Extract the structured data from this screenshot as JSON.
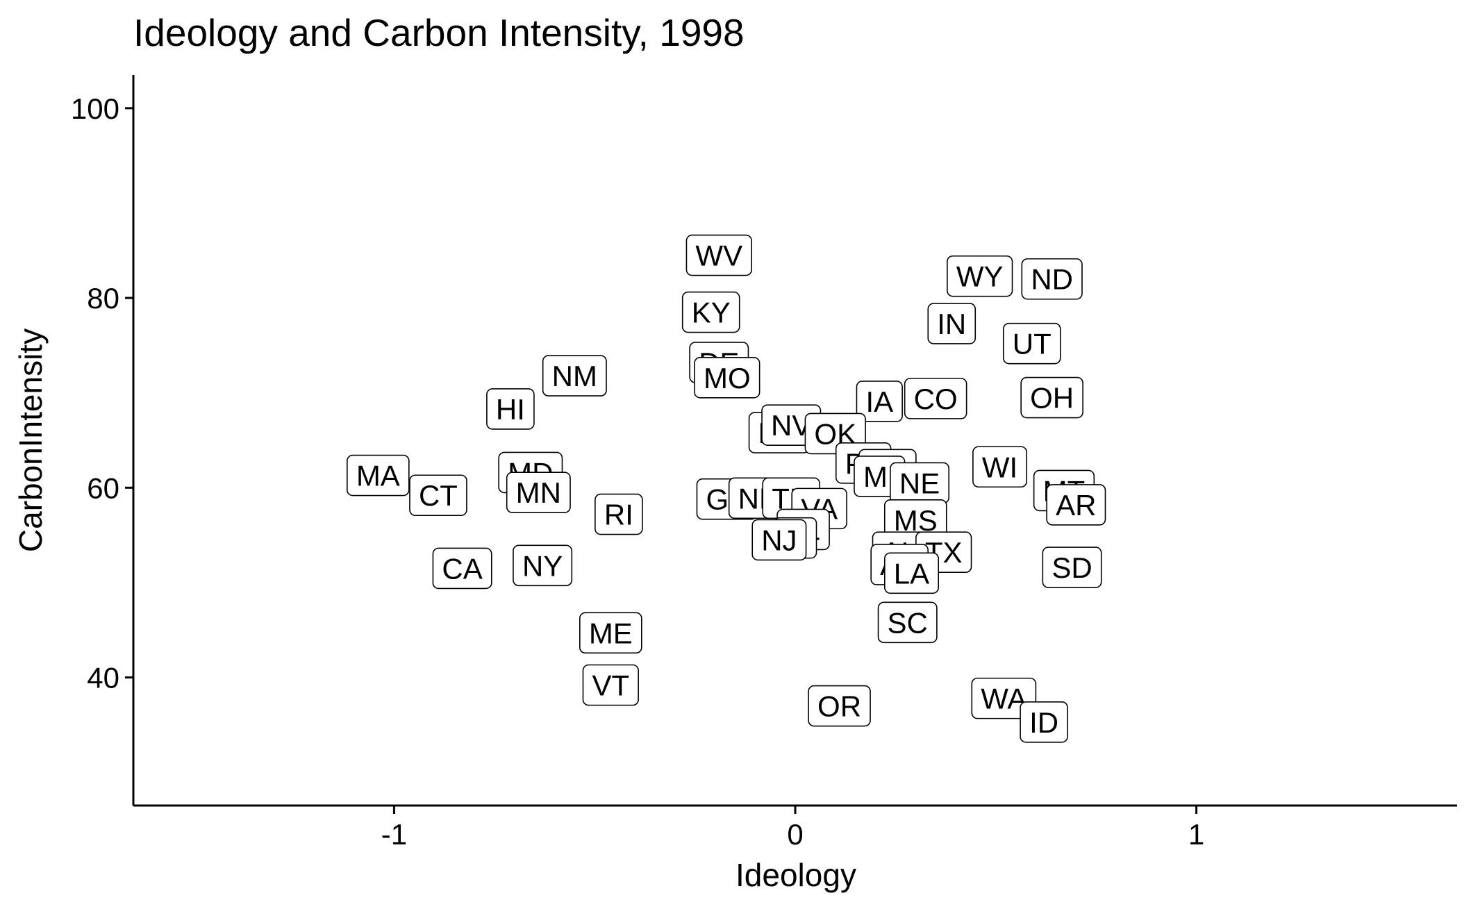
{
  "chart_data": {
    "type": "scatter",
    "title": "Ideology and Carbon Intensity, 1998",
    "xlabel": "Ideology",
    "ylabel": "CarbonIntensity",
    "xlim": [
      -1.65,
      1.65
    ],
    "ylim": [
      26.5,
      103.5
    ],
    "xticks": [
      -1,
      0,
      1
    ],
    "xtick_labels": [
      "-1",
      "0",
      "1"
    ],
    "yticks": [
      40,
      60,
      80,
      100
    ],
    "ytick_labels": [
      "40",
      "60",
      "80",
      "100"
    ],
    "grid": false,
    "legend": "none",
    "point_style": "label",
    "points": [
      {
        "label": "WV",
        "x": -0.19,
        "y": 84.5
      },
      {
        "label": "WY",
        "x": 0.46,
        "y": 82.3
      },
      {
        "label": "ND",
        "x": 0.64,
        "y": 82.0
      },
      {
        "label": "KY",
        "x": -0.21,
        "y": 78.5
      },
      {
        "label": "IN",
        "x": 0.39,
        "y": 77.3
      },
      {
        "label": "UT",
        "x": 0.59,
        "y": 75.2
      },
      {
        "label": "DE",
        "x": -0.19,
        "y": 73.2
      },
      {
        "label": "NM",
        "x": -0.55,
        "y": 71.8
      },
      {
        "label": "MO",
        "x": -0.17,
        "y": 71.6
      },
      {
        "label": "HI",
        "x": -0.71,
        "y": 68.3
      },
      {
        "label": "IA",
        "x": 0.21,
        "y": 69.1
      },
      {
        "label": "CO",
        "x": 0.35,
        "y": 69.4
      },
      {
        "label": "OH",
        "x": 0.64,
        "y": 69.5
      },
      {
        "label": "NC",
        "x": -0.04,
        "y": 65.8
      },
      {
        "label": "NV",
        "x": -0.01,
        "y": 66.6
      },
      {
        "label": "OK",
        "x": 0.1,
        "y": 65.7
      },
      {
        "label": "PA",
        "x": 0.17,
        "y": 62.6
      },
      {
        "label": "KS",
        "x": 0.23,
        "y": 61.9
      },
      {
        "label": "MI",
        "x": 0.21,
        "y": 61.2
      },
      {
        "label": "WI",
        "x": 0.51,
        "y": 62.2
      },
      {
        "label": "MA",
        "x": -1.04,
        "y": 61.3
      },
      {
        "label": "MD",
        "x": -0.66,
        "y": 61.6
      },
      {
        "label": "NE",
        "x": 0.31,
        "y": 60.5
      },
      {
        "label": "MT",
        "x": 0.67,
        "y": 59.7
      },
      {
        "label": "AR",
        "x": 0.7,
        "y": 58.2
      },
      {
        "label": "CT",
        "x": -0.89,
        "y": 59.2
      },
      {
        "label": "MN",
        "x": -0.64,
        "y": 59.5
      },
      {
        "label": "GA",
        "x": -0.17,
        "y": 58.8
      },
      {
        "label": "NH",
        "x": -0.09,
        "y": 58.9
      },
      {
        "label": "TN",
        "x": -0.01,
        "y": 58.9
      },
      {
        "label": "RI",
        "x": -0.44,
        "y": 57.2
      },
      {
        "label": "VA",
        "x": 0.06,
        "y": 57.8
      },
      {
        "label": "FL",
        "x": 0.02,
        "y": 55.6
      },
      {
        "label": "MS",
        "x": 0.3,
        "y": 56.6
      },
      {
        "label": "IL",
        "x": 0.0,
        "y": 54.7
      },
      {
        "label": "NJ",
        "x": -0.04,
        "y": 54.5
      },
      {
        "label": "AL",
        "x": 0.26,
        "y": 53.2
      },
      {
        "label": "TX",
        "x": 0.37,
        "y": 53.2
      },
      {
        "label": "AK",
        "x": 0.26,
        "y": 51.9
      },
      {
        "label": "LA",
        "x": 0.29,
        "y": 51.0
      },
      {
        "label": "SD",
        "x": 0.69,
        "y": 51.6
      },
      {
        "label": "CA",
        "x": -0.83,
        "y": 51.5
      },
      {
        "label": "NY",
        "x": -0.63,
        "y": 51.8
      },
      {
        "label": "SC",
        "x": 0.28,
        "y": 45.8
      },
      {
        "label": "ME",
        "x": -0.46,
        "y": 44.7
      },
      {
        "label": "VT",
        "x": -0.46,
        "y": 39.2
      },
      {
        "label": "OR",
        "x": 0.11,
        "y": 37.0
      },
      {
        "label": "WA",
        "x": 0.52,
        "y": 37.8
      },
      {
        "label": "ID",
        "x": 0.62,
        "y": 35.3
      }
    ]
  }
}
